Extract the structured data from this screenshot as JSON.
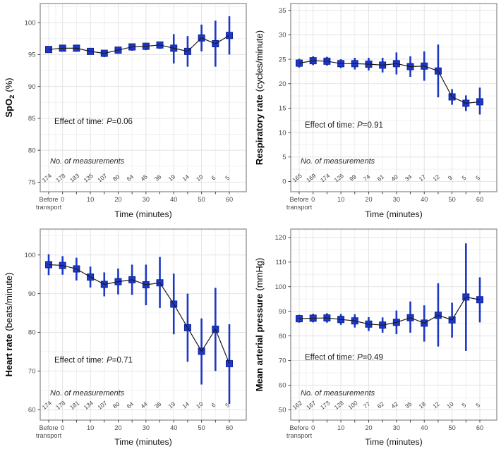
{
  "figure": {
    "background": "#ffffff",
    "colors": {
      "marker_fill": "#1d38c4",
      "marker_stroke": "#10239b",
      "errorbar": "#1d38c4",
      "series_line": "#1a1a1a",
      "grid_major": "#e3e3e3",
      "grid_minor": "#f1f1f1",
      "panel_border": "#8f8f8f",
      "tick": "#333333",
      "tick_label": "#4a4a4a",
      "counts_text": "#3d3d3d",
      "annotation_text": "#1a1a1a",
      "axis_title": "#000000"
    }
  },
  "chart_data": [
    {
      "name": "spo2",
      "type": "line",
      "ylabel": {
        "bold": "SpO",
        "sub": "2",
        "normal": "(%)"
      },
      "xlabel": "Time (minutes)",
      "categories": [
        "Before transport",
        "0",
        "5",
        "10",
        "15",
        "20",
        "25",
        "30",
        "35",
        "40",
        "45",
        "50",
        "55",
        "60"
      ],
      "x_tick_labels": [
        "Before|transport",
        "0",
        "",
        "10",
        "",
        "20",
        "",
        "30",
        "",
        "40",
        "",
        "50",
        "",
        "60"
      ],
      "means": [
        95.8,
        96.0,
        96.0,
        95.5,
        95.2,
        95.7,
        96.2,
        96.3,
        96.5,
        96.0,
        95.5,
        97.6,
        96.7,
        98.0
      ],
      "ci_low": [
        95.3,
        95.5,
        95.5,
        95.0,
        94.6,
        95.1,
        95.6,
        95.7,
        95.9,
        93.6,
        93.1,
        95.5,
        93.1,
        95.0
      ],
      "ci_high": [
        96.3,
        96.4,
        96.5,
        96.0,
        95.7,
        96.2,
        96.7,
        96.8,
        97.0,
        98.2,
        97.9,
        99.7,
        100.3,
        101.0
      ],
      "yticks": [
        75,
        80,
        85,
        90,
        95,
        100
      ],
      "ylim": [
        73.5,
        103.0
      ],
      "grid": true,
      "annotation": {
        "prefix": "Effect of time:",
        "italic": "P",
        "suffix": "=0.06"
      },
      "measurements_label": "No. of measurements",
      "counts": [
        174,
        178,
        183,
        135,
        107,
        80,
        64,
        45,
        36,
        19,
        14,
        10,
        6,
        5
      ],
      "layout": {
        "row": "top",
        "annotation_y_frac": 0.64,
        "measurements_y_frac": 0.85,
        "counts_y_frac": 0.935
      }
    },
    {
      "name": "resp-rate",
      "type": "line",
      "ylabel": {
        "bold": "Respiratory rate",
        "sub": "",
        "normal": "(cycles/minute)"
      },
      "xlabel": "Time (minutes)",
      "categories": [
        "Before transport",
        "0",
        "5",
        "10",
        "15",
        "20",
        "25",
        "30",
        "35",
        "40",
        "45",
        "50",
        "55",
        "60"
      ],
      "x_tick_labels": [
        "Before|transport",
        "0",
        "",
        "10",
        "",
        "20",
        "",
        "30",
        "",
        "40",
        "",
        "50",
        "",
        "60"
      ],
      "means": [
        24.2,
        24.7,
        24.6,
        24.1,
        24.1,
        24.0,
        23.8,
        24.1,
        23.5,
        23.6,
        22.6,
        17.3,
        16.0,
        16.3
      ],
      "ci_low": [
        23.3,
        23.8,
        23.7,
        23.2,
        22.9,
        22.7,
        22.3,
        21.9,
        21.4,
        20.6,
        17.2,
        15.7,
        14.4,
        13.7
      ],
      "ci_high": [
        25.1,
        25.6,
        25.5,
        25.0,
        25.3,
        25.3,
        25.3,
        26.4,
        25.6,
        26.6,
        28.0,
        18.9,
        17.6,
        19.2
      ],
      "yticks": [
        0,
        5,
        10,
        15,
        20,
        25,
        30,
        35
      ],
      "ylim": [
        -2.1,
        36.4
      ],
      "grid": true,
      "annotation": {
        "prefix": "Effect of time:",
        "italic": "P",
        "suffix": "=0.91"
      },
      "measurements_label": "No. of measurements",
      "counts": [
        165,
        169,
        174,
        126,
        99,
        74,
        61,
        40,
        34,
        17,
        12,
        9,
        5,
        5
      ],
      "layout": {
        "row": "top",
        "annotation_y_frac": 0.66,
        "measurements_y_frac": 0.85,
        "counts_y_frac": 0.935
      }
    },
    {
      "name": "heart-rate",
      "type": "line",
      "ylabel": {
        "bold": "Heart rate",
        "sub": "",
        "normal": "(beats/minute)"
      },
      "xlabel": "Time (minutes)",
      "categories": [
        "Before transport",
        "0",
        "5",
        "10",
        "15",
        "20",
        "25",
        "30",
        "35",
        "40",
        "45",
        "50",
        "55",
        "60"
      ],
      "x_tick_labels": [
        "Before|transport",
        "0",
        "",
        "10",
        "",
        "20",
        "",
        "30",
        "",
        "40",
        "",
        "50",
        "",
        "60"
      ],
      "means": [
        97.5,
        97.3,
        96.4,
        94.3,
        92.4,
        93.1,
        93.6,
        92.3,
        92.8,
        87.3,
        81.2,
        75.1,
        80.8,
        71.9
      ],
      "ci_low": [
        94.8,
        94.9,
        93.4,
        91.6,
        89.3,
        89.8,
        89.7,
        87.0,
        86.3,
        79.5,
        72.4,
        66.5,
        70.0,
        61.5
      ],
      "ci_high": [
        100.2,
        99.7,
        99.3,
        97.0,
        95.5,
        96.5,
        97.5,
        97.5,
        99.5,
        95.2,
        90.0,
        83.6,
        91.5,
        82.1
      ],
      "yticks": [
        60,
        70,
        80,
        90,
        100
      ],
      "ylim": [
        57.3,
        106.7
      ],
      "grid": true,
      "annotation": {
        "prefix": "Effect of time:",
        "italic": "P",
        "suffix": "=0.71"
      },
      "measurements_label": "No. of measurements",
      "counts": [
        174,
        178,
        181,
        134,
        107,
        80,
        64,
        44,
        36,
        19,
        14,
        10,
        6,
        5
      ],
      "layout": {
        "row": "bottom",
        "annotation_y_frac": 0.7,
        "measurements_y_frac": 0.87,
        "counts_y_frac": 0.93
      }
    },
    {
      "name": "map",
      "type": "line",
      "ylabel": {
        "bold": "Mean arterial pressure",
        "sub": "",
        "normal": "(mmHg)"
      },
      "xlabel": "Time (minutes)",
      "categories": [
        "Before transport",
        "0",
        "5",
        "10",
        "15",
        "20",
        "25",
        "30",
        "35",
        "40",
        "45",
        "50",
        "55",
        "60"
      ],
      "x_tick_labels": [
        "Before|transport",
        "0",
        "",
        "10",
        "",
        "20",
        "",
        "30",
        "",
        "40",
        "",
        "50",
        "",
        "60"
      ],
      "means": [
        87.0,
        87.2,
        87.3,
        86.7,
        86.1,
        84.8,
        84.4,
        85.5,
        87.4,
        85.2,
        88.4,
        86.5,
        95.8,
        94.7
      ],
      "ci_low": [
        85.4,
        85.5,
        85.4,
        84.5,
        83.4,
        82.0,
        81.3,
        80.7,
        81.3,
        77.7,
        75.7,
        79.3,
        73.9,
        85.5
      ],
      "ci_high": [
        88.6,
        89.0,
        89.2,
        88.9,
        88.8,
        87.6,
        87.5,
        90.3,
        94.0,
        92.4,
        101.4,
        93.5,
        117.6,
        103.8
      ],
      "yticks": [
        50,
        60,
        70,
        80,
        90,
        100,
        110,
        120
      ],
      "ylim": [
        45.8,
        123.4
      ],
      "grid": true,
      "annotation": {
        "prefix": "Effect of time:",
        "italic": "P",
        "suffix": "=0.49"
      },
      "measurements_label": "No. of measurements",
      "counts": [
        162,
        167,
        173,
        128,
        100,
        77,
        62,
        42,
        35,
        18,
        12,
        10,
        5,
        5
      ],
      "layout": {
        "row": "bottom",
        "annotation_y_frac": 0.685,
        "measurements_y_frac": 0.87,
        "counts_y_frac": 0.93
      }
    }
  ]
}
